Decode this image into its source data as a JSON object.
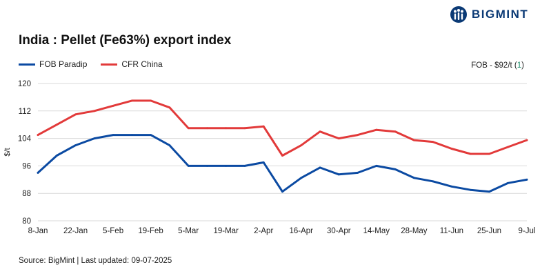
{
  "brand": {
    "name": "BIGMINT",
    "color": "#0b3a75"
  },
  "header": {
    "note_prefix": "FOB - $92/t (",
    "note_value": "1",
    "note_suffix": ")"
  },
  "footer": {
    "source": "Source: BigMint | Last updated: 09-07-2025"
  },
  "chart_data": {
    "type": "line",
    "title": "India : Pellet (Fe63%) export index",
    "xlabel": "",
    "ylabel": "$/t",
    "ylim": [
      80,
      120
    ],
    "yticks": [
      80,
      88,
      96,
      104,
      112,
      120
    ],
    "x_ticks": [
      "8-Jan",
      "22-Jan",
      "5-Feb",
      "19-Feb",
      "5-Mar",
      "19-Mar",
      "2-Apr",
      "16-Apr",
      "30-Apr",
      "14-May",
      "28-May",
      "11-Jun",
      "25-Jun",
      "9-Jul"
    ],
    "x": [
      "8-Jan",
      "15-Jan",
      "22-Jan",
      "29-Jan",
      "5-Feb",
      "12-Feb",
      "19-Feb",
      "26-Feb",
      "5-Mar",
      "12-Mar",
      "19-Mar",
      "26-Mar",
      "2-Apr",
      "9-Apr",
      "16-Apr",
      "23-Apr",
      "30-Apr",
      "7-May",
      "14-May",
      "21-May",
      "28-May",
      "4-Jun",
      "11-Jun",
      "18-Jun",
      "25-Jun",
      "2-Jul",
      "9-Jul"
    ],
    "legend_position": "top-left",
    "grid": true,
    "series": [
      {
        "name": "FOB Paradip",
        "color": "#0b4aa2",
        "values": [
          94,
          99,
          102,
          104,
          105,
          105,
          105,
          102,
          96,
          96,
          96,
          96,
          97,
          88.5,
          92.5,
          95.5,
          93.5,
          94,
          96,
          95,
          92.5,
          91.5,
          90,
          89,
          88.5,
          91,
          92
        ]
      },
      {
        "name": "CFR China",
        "color": "#e23a3a",
        "values": [
          105,
          108,
          111,
          112,
          113.5,
          115,
          115,
          113,
          107,
          107,
          107,
          107,
          107.5,
          99,
          102,
          106,
          104,
          105,
          106.5,
          106,
          103.5,
          103,
          101,
          99.5,
          99.5,
          101.5,
          103.5
        ]
      }
    ]
  }
}
